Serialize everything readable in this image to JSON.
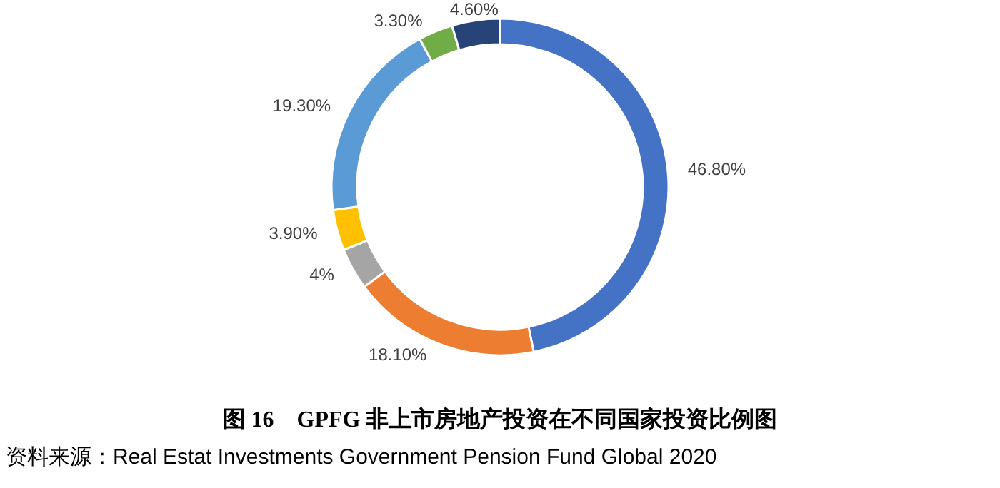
{
  "chart_data": {
    "type": "donut",
    "title": "图 16　GPFG 非上市房地产投资在不同国家投资比例图",
    "categories": [
      null,
      null,
      null,
      null,
      null,
      null,
      null
    ],
    "values": [
      46.8,
      18.1,
      4,
      3.9,
      19.3,
      3.3,
      4.6
    ],
    "colors": [
      "#4472c4",
      "#ed7d31",
      "#a5a5a5",
      "#ffc000",
      "#5b9bd5",
      "#70ad47",
      "#264478"
    ],
    "value_labels": [
      "46.80%",
      "18.10%",
      "4%",
      "3.90%",
      "19.30%",
      "3.30%",
      "4.60%"
    ],
    "annotations": [
      "资料来源：Real Estat Investments Government Pension Fund Global 2020"
    ]
  }
}
